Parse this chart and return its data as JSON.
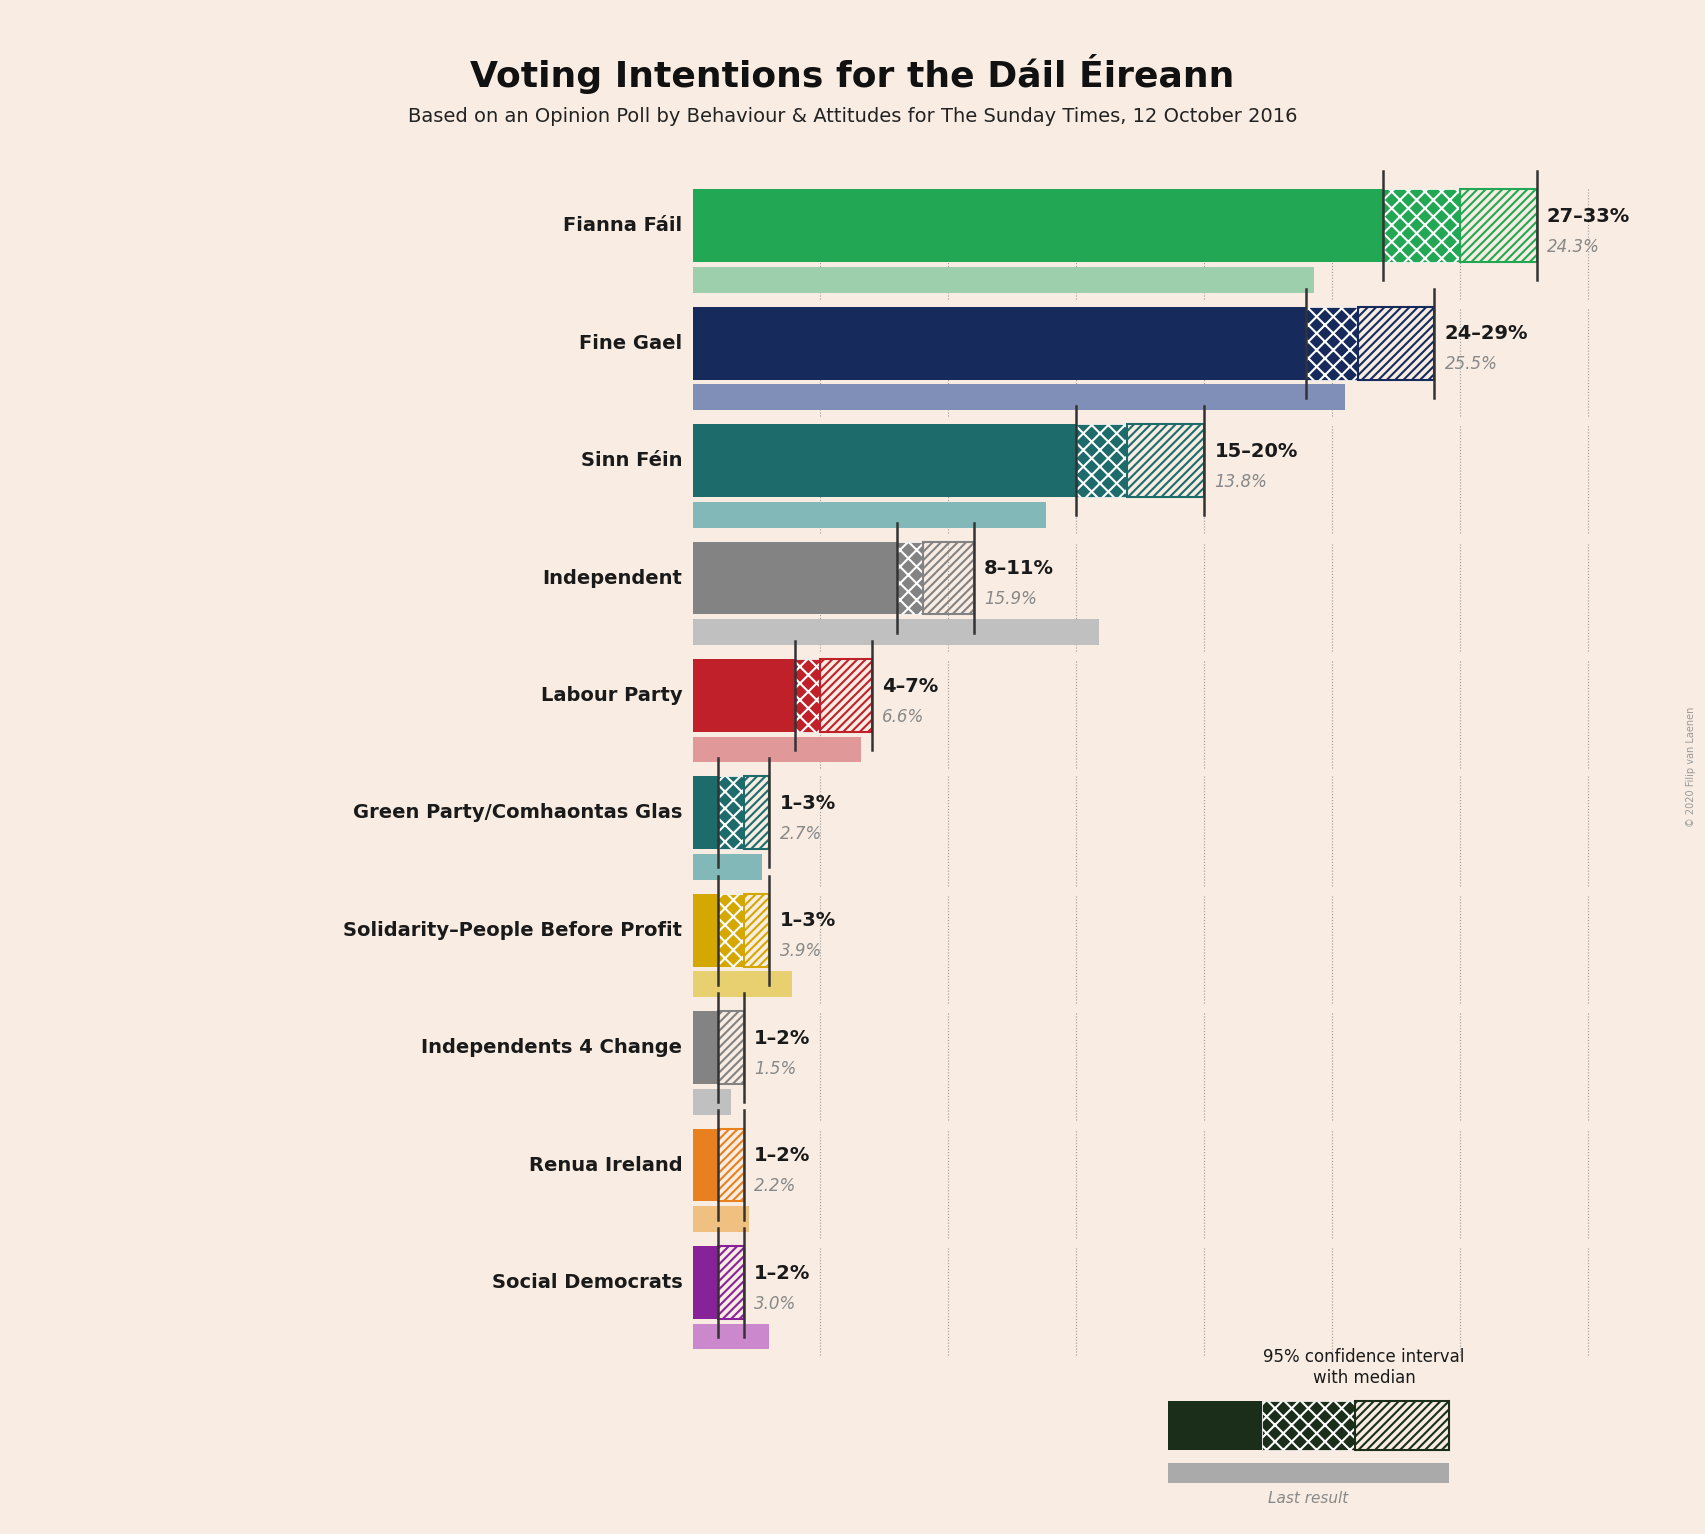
{
  "title": "Voting Intentions for the Dáil Éireann",
  "subtitle": "Based on an Opinion Poll by Behaviour & Attitudes for The Sunday Times, 12 October 2016",
  "background_color": "#f9ede3",
  "copyright": "© 2020 Filip van Laenen",
  "parties": [
    {
      "name": "Fianna Fáil",
      "ci_low": 27,
      "ci_high": 33,
      "median": 30,
      "last_result": 24.3,
      "color": "#22A855",
      "last_color": "#9dcfad"
    },
    {
      "name": "Fine Gael",
      "ci_low": 24,
      "ci_high": 29,
      "median": 26,
      "last_result": 25.5,
      "color": "#162B5C",
      "last_color": "#7f8fb8"
    },
    {
      "name": "Sinn Féin",
      "ci_low": 15,
      "ci_high": 20,
      "median": 17,
      "last_result": 13.8,
      "color": "#1d6b6b",
      "last_color": "#82b8b8"
    },
    {
      "name": "Independent",
      "ci_low": 8,
      "ci_high": 11,
      "median": 9,
      "last_result": 15.9,
      "color": "#838383",
      "last_color": "#c0c0c0"
    },
    {
      "name": "Labour Party",
      "ci_low": 4,
      "ci_high": 7,
      "median": 5,
      "last_result": 6.6,
      "color": "#C0202A",
      "last_color": "#e09898"
    },
    {
      "name": "Green Party/Comhaontas Glas",
      "ci_low": 1,
      "ci_high": 3,
      "median": 2,
      "last_result": 2.7,
      "color": "#1d6b6b",
      "last_color": "#82b8b8"
    },
    {
      "name": "Solidarity–People Before Profit",
      "ci_low": 1,
      "ci_high": 3,
      "median": 2,
      "last_result": 3.9,
      "color": "#D4A800",
      "last_color": "#e8d070"
    },
    {
      "name": "Independents 4 Change",
      "ci_low": 1,
      "ci_high": 2,
      "median": 1,
      "last_result": 1.5,
      "color": "#838383",
      "last_color": "#c0c0c0"
    },
    {
      "name": "Renua Ireland",
      "ci_low": 1,
      "ci_high": 2,
      "median": 1,
      "last_result": 2.2,
      "color": "#E88020",
      "last_color": "#f0c080"
    },
    {
      "name": "Social Democrats",
      "ci_low": 1,
      "ci_high": 2,
      "median": 1,
      "last_result": 3.0,
      "color": "#882299",
      "last_color": "#cc88cc"
    }
  ],
  "xlim": [
    0,
    36
  ],
  "bar_height": 0.62,
  "last_bar_height": 0.22,
  "dot_interval": 5,
  "dot_color": "#999999",
  "tick_color": "#333333",
  "label_fontsize": 14,
  "last_label_fontsize": 12,
  "party_fontsize": 14,
  "title_fontsize": 26,
  "subtitle_fontsize": 14
}
